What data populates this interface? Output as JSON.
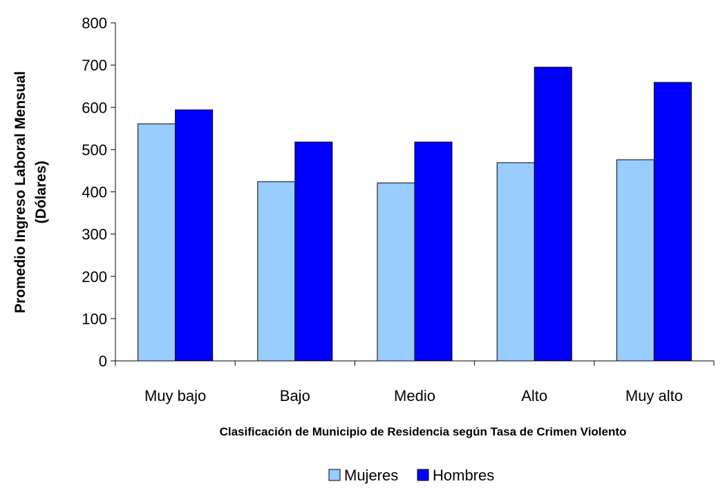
{
  "chart_data": {
    "type": "bar",
    "categories": [
      "Muy bajo",
      "Bajo",
      "Medio",
      "Alto",
      "Muy alto"
    ],
    "series": [
      {
        "name": "Mujeres",
        "values": [
          561,
          424,
          421,
          469,
          476
        ],
        "color": "#99ccff"
      },
      {
        "name": "Hombres",
        "values": [
          594,
          518,
          518,
          695,
          659
        ],
        "color": "#0000ff"
      }
    ],
    "title": "",
    "xlabel": "Clasificación de Municipio de Residencia según Tasa de Crimen Violento",
    "ylabel_line1": "Promedio Ingreso Laboral Mensual",
    "ylabel_line2": "(Dólares)",
    "ylim": [
      0,
      800
    ],
    "yticks": [
      0,
      100,
      200,
      300,
      400,
      500,
      600,
      700,
      800
    ],
    "grid": false,
    "legend_placement": "bottom-center"
  }
}
